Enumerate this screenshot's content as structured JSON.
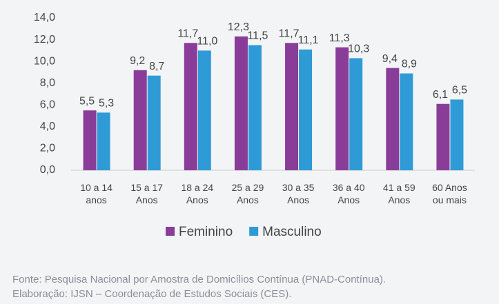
{
  "chart_data": {
    "type": "bar",
    "categories": [
      "10 a 14 anos",
      "15 a 17 Anos",
      "18 a 24 Anos",
      "25 a 29 Anos",
      "30 a 35 Anos",
      "36 a 40 Anos",
      "41 a 59 Anos",
      "60 Anos ou mais"
    ],
    "series": [
      {
        "name": "Feminino",
        "color": "#8a3d98",
        "values": [
          5.5,
          9.2,
          11.7,
          12.3,
          11.7,
          11.3,
          9.4,
          6.1
        ],
        "value_labels": [
          "5,5",
          "9,2",
          "11,7",
          "12,3",
          "11,7",
          "11,3",
          "9,4",
          "6,1"
        ]
      },
      {
        "name": "Masculino",
        "color": "#2f9bd6",
        "values": [
          5.3,
          8.7,
          11.0,
          11.5,
          11.1,
          10.3,
          8.9,
          6.5
        ],
        "value_labels": [
          "5,3",
          "8,7",
          "11,0",
          "11,5",
          "11,1",
          "10,3",
          "8,9",
          "6,5"
        ]
      }
    ],
    "ylim": [
      0,
      14
    ],
    "yticks": [
      {
        "value": 0,
        "label": "0,0"
      },
      {
        "value": 2,
        "label": "2,0"
      },
      {
        "value": 4,
        "label": "4,0"
      },
      {
        "value": 6,
        "label": "6,0"
      },
      {
        "value": 8,
        "label": "8,0"
      },
      {
        "value": 10,
        "label": "10,0"
      },
      {
        "value": 12,
        "label": "12,0"
      },
      {
        "value": 14,
        "label": "14,0"
      }
    ],
    "grid": false,
    "legend": "bottom"
  },
  "source": [
    "Fonte: Pesquisa Nacional por Amostra de Domicílios Contínua (PNAD-Contínua).",
    "Elaboração: IJSN – Coordenação de Estudos Sociais (CES)."
  ]
}
